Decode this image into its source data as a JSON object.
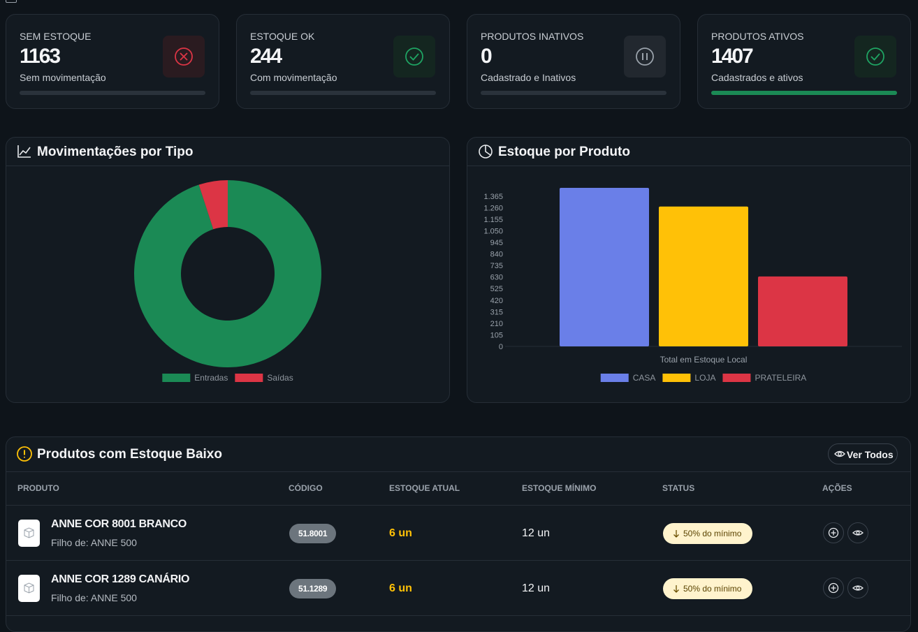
{
  "stat_cards": [
    {
      "label": "SEM ESTOQUE",
      "value": 1163,
      "caption": "Sem movimentação"
    },
    {
      "label": "ESTOQUE OK",
      "value": 244,
      "caption": "Com movimentação"
    },
    {
      "label": "PRODUTOS INATIVOS",
      "value": 0,
      "caption": "Cadastrado e Inativos"
    },
    {
      "label": "PRODUTOS ATIVOS",
      "value": 1407,
      "caption": "Cadastrados e ativos"
    }
  ],
  "chart_data": [
    {
      "type": "pie",
      "title": "Movimentações por Tipo",
      "donut": true,
      "categories": [
        "Entradas",
        "Saídas"
      ],
      "values": [
        95,
        5
      ],
      "colors": [
        "#1b8a55",
        "#dc3545"
      ]
    },
    {
      "type": "bar",
      "title": "Estoque por Produto",
      "categories": [
        "Total em Estoque Local"
      ],
      "series": [
        {
          "name": "CASA",
          "color": "#6a7fe8",
          "values": [
            1440
          ]
        },
        {
          "name": "LOJA",
          "color": "#ffc107",
          "values": [
            1270
          ]
        },
        {
          "name": "PRATELEIRA",
          "color": "#dc3545",
          "values": [
            635
          ]
        }
      ],
      "ylim": [
        0,
        1440
      ],
      "yticks": [
        0,
        105,
        210,
        315,
        420,
        525,
        630,
        735,
        840,
        945,
        {
          "value": 1050,
          "label": "1.050"
        },
        {
          "value": 1155,
          "label": "1.155"
        },
        {
          "value": 1260,
          "label": "1.260"
        },
        {
          "value": 1365,
          "label": "1.365"
        }
      ],
      "grid": false
    }
  ],
  "low_stock": {
    "title": "Produtos com Estoque Baixo",
    "button": "Ver Todos",
    "columns": [
      "PRODUTO",
      "CÓDIGO",
      "ESTOQUE ATUAL",
      "ESTOQUE MÍNIMO",
      "STATUS",
      "AÇÕES"
    ],
    "rows": [
      {
        "product": "ANNE COR 8001 BRANCO",
        "parent": "Filho de: ANNE 500",
        "code": "51.8001",
        "current": "6 un",
        "minimum": "12 un",
        "status": "50% do mínimo"
      },
      {
        "product": "ANNE COR 1289 CANÁRIO",
        "parent": "Filho de: ANNE 500",
        "code": "51.1289",
        "current": "6 un",
        "minimum": "12 un",
        "status": "50% do mínimo"
      }
    ]
  }
}
